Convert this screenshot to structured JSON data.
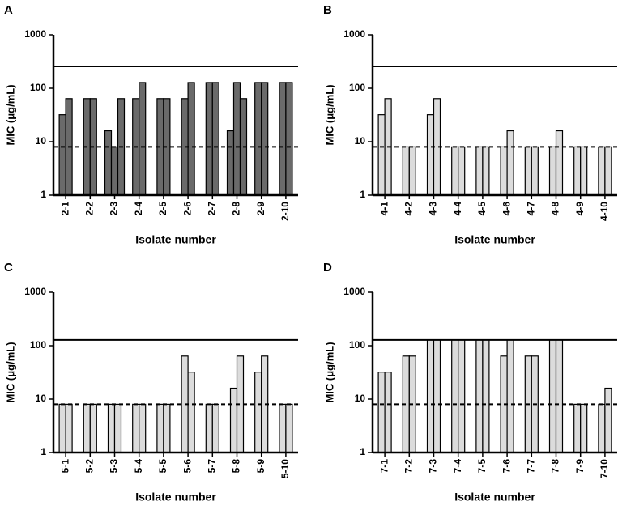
{
  "chart_data": [
    {
      "type": "bar",
      "panel": "A",
      "ylabel": "MIC (μg/mL)",
      "xlabel": "Isolate number",
      "log_y": true,
      "ylim": [
        1,
        1000
      ],
      "yticks": [
        1,
        10,
        100,
        1000
      ],
      "categories": [
        "2-1",
        "2-2",
        "2-3",
        "2-4",
        "2-5",
        "2-6",
        "2-7",
        "2-8",
        "2-9",
        "2-10"
      ],
      "series": [
        {
          "color": "#6a6a6a",
          "values": [
            32,
            64,
            16,
            64,
            64,
            64,
            128,
            16,
            128,
            128
          ]
        },
        {
          "color": "#6a6a6a",
          "values": [
            64,
            64,
            8,
            128,
            64,
            128,
            128,
            128,
            128,
            128
          ]
        },
        {
          "color": "#6a6a6a",
          "values": [
            null,
            null,
            64,
            null,
            null,
            null,
            null,
            64,
            null,
            null
          ]
        }
      ],
      "hlines": [
        {
          "value": 256,
          "style": "solid"
        },
        {
          "value": 8,
          "style": "dashed"
        }
      ]
    },
    {
      "type": "bar",
      "panel": "B",
      "ylabel": "MIC (μg/mL)",
      "xlabel": "Isolate number",
      "log_y": true,
      "ylim": [
        1,
        1000
      ],
      "yticks": [
        1,
        10,
        100,
        1000
      ],
      "categories": [
        "4-1",
        "4-2",
        "4-3",
        "4-4",
        "4-5",
        "4-6",
        "4-7",
        "4-8",
        "4-9",
        "4-10"
      ],
      "series": [
        {
          "color": "#dcdcdc",
          "values": [
            32,
            8,
            32,
            8,
            8,
            8,
            8,
            8,
            8,
            8
          ]
        },
        {
          "color": "#dcdcdc",
          "values": [
            64,
            8,
            64,
            8,
            8,
            16,
            8,
            16,
            8,
            8
          ]
        }
      ],
      "hlines": [
        {
          "value": 256,
          "style": "solid"
        },
        {
          "value": 8,
          "style": "dashed"
        }
      ]
    },
    {
      "type": "bar",
      "panel": "C",
      "ylabel": "MIC (μg/mL)",
      "xlabel": "Isolate number",
      "log_y": true,
      "ylim": [
        1,
        1000
      ],
      "yticks": [
        1,
        10,
        100,
        1000
      ],
      "categories": [
        "5-1",
        "5-2",
        "5-3",
        "5-4",
        "5-5",
        "5-6",
        "5-7",
        "5-8",
        "5-9",
        "5-10"
      ],
      "series": [
        {
          "color": "#dcdcdc",
          "values": [
            8,
            8,
            8,
            8,
            8,
            64,
            8,
            16,
            32,
            8
          ]
        },
        {
          "color": "#dcdcdc",
          "values": [
            8,
            8,
            8,
            8,
            8,
            32,
            8,
            64,
            64,
            8
          ]
        }
      ],
      "hlines": [
        {
          "value": 128,
          "style": "solid"
        },
        {
          "value": 8,
          "style": "dashed"
        }
      ]
    },
    {
      "type": "bar",
      "panel": "D",
      "ylabel": "MIC (μg/mL)",
      "xlabel": "Isolate number",
      "log_y": true,
      "ylim": [
        1,
        1000
      ],
      "yticks": [
        1,
        10,
        100,
        1000
      ],
      "categories": [
        "7-1",
        "7-2",
        "7-3",
        "7-4",
        "7-5",
        "7-6",
        "7-7",
        "7-8",
        "7-9",
        "7-10"
      ],
      "series": [
        {
          "color": "#dcdcdc",
          "values": [
            32,
            64,
            128,
            128,
            128,
            64,
            64,
            128,
            8,
            8
          ]
        },
        {
          "color": "#dcdcdc",
          "values": [
            32,
            64,
            128,
            128,
            128,
            128,
            64,
            128,
            8,
            16
          ]
        }
      ],
      "hlines": [
        {
          "value": 128,
          "style": "solid"
        },
        {
          "value": 8,
          "style": "dashed"
        }
      ]
    }
  ]
}
